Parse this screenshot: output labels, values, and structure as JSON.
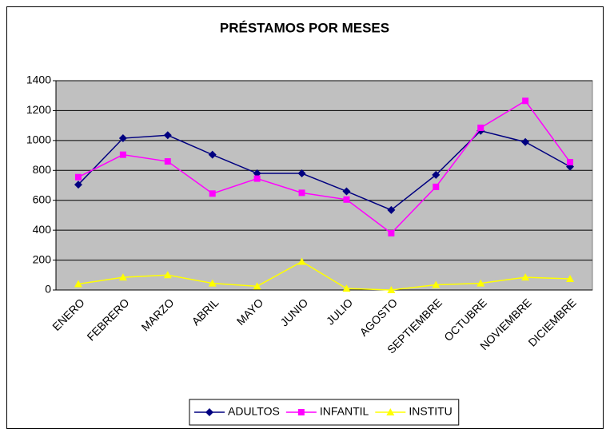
{
  "chart_data": {
    "type": "line",
    "title": "PRÉSTAMOS POR MESES",
    "categories": [
      "ENERO",
      "FEBRERO",
      "MARZO",
      "ABRIL",
      "MAYO",
      "JUNIO",
      "JULIO",
      "AGOSTO",
      "SEPTIEMBRE",
      "OCTUBRE",
      "NOVIEMBRE",
      "DICIEMBRE"
    ],
    "series": [
      {
        "name": "ADULTOS",
        "color": "#000080",
        "marker": "diamond",
        "values": [
          705,
          1015,
          1035,
          905,
          780,
          780,
          660,
          535,
          770,
          1065,
          990,
          825
        ]
      },
      {
        "name": "INFANTIL",
        "color": "#ff00ff",
        "marker": "square",
        "values": [
          755,
          905,
          860,
          645,
          745,
          650,
          605,
          380,
          690,
          1085,
          1265,
          855
        ]
      },
      {
        "name": "INSTITU",
        "color": "#ffff00",
        "marker": "triangle",
        "values": [
          40,
          85,
          100,
          45,
          25,
          190,
          10,
          0,
          35,
          45,
          85,
          75
        ]
      }
    ],
    "ylim": [
      0,
      1400
    ],
    "yticks": [
      0,
      200,
      400,
      600,
      800,
      1000,
      1200,
      1400
    ],
    "grid": true,
    "legend": "bottom"
  }
}
